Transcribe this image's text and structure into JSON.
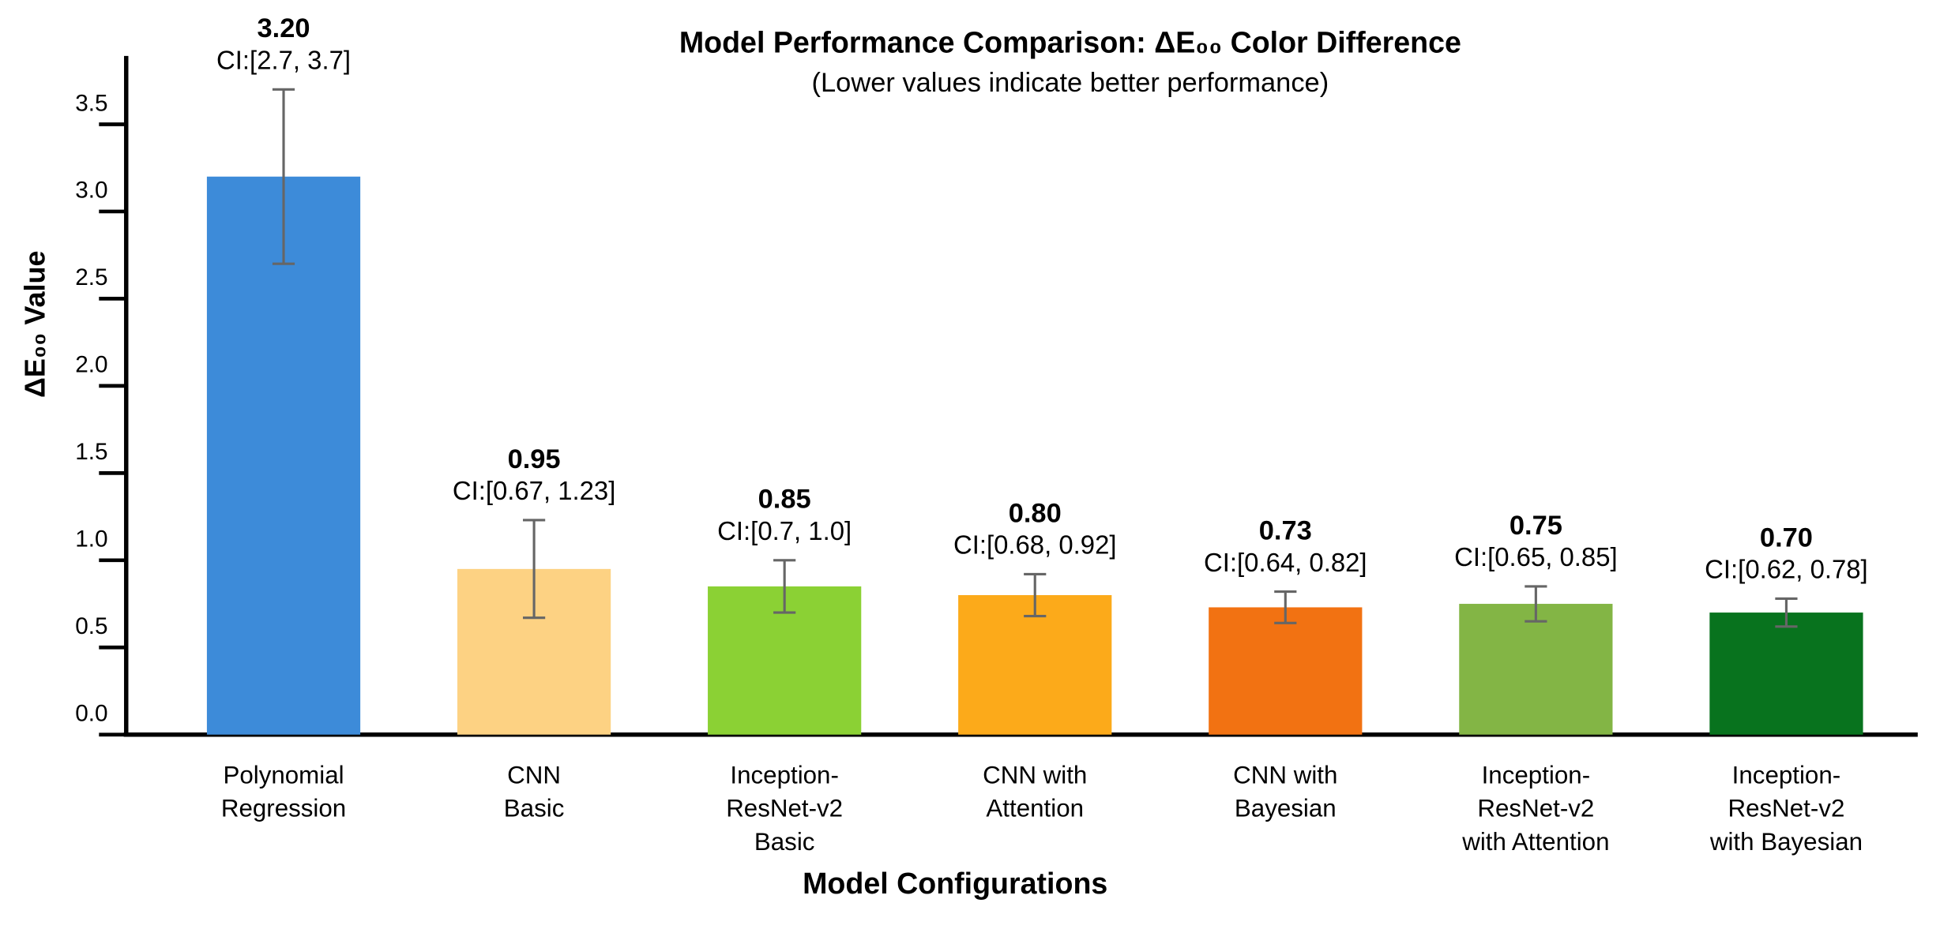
{
  "chart_data": {
    "type": "bar",
    "title": "Model Performance Comparison: ΔE₀₀ Color Difference",
    "subtitle": "(Lower values indicate better performance)",
    "x_label": "Model Configurations",
    "y_label": "ΔE₀₀ Value",
    "categories": [
      [
        "Polynomial",
        "Regression"
      ],
      [
        "CNN",
        "Basic"
      ],
      [
        "Inception-",
        "ResNet-v2",
        "Basic"
      ],
      [
        "CNN with",
        "Attention"
      ],
      [
        "CNN with",
        "Bayesian"
      ],
      [
        "Inception-",
        "ResNet-v2",
        "with Attention"
      ],
      [
        "Inception-",
        "ResNet-v2",
        "with Bayesian"
      ]
    ],
    "values": [
      3.2,
      0.95,
      0.85,
      0.8,
      0.73,
      0.75,
      0.7
    ],
    "value_labels": [
      "3.20",
      "0.95",
      "0.85",
      "0.80",
      "0.73",
      "0.75",
      "0.70"
    ],
    "ci_low": [
      2.7,
      0.67,
      0.7,
      0.68,
      0.64,
      0.65,
      0.62
    ],
    "ci_high": [
      3.7,
      1.23,
      1.0,
      0.92,
      0.82,
      0.85,
      0.78
    ],
    "ci_labels": [
      "CI:[2.7, 3.7]",
      "CI:[0.67, 1.23]",
      "CI:[0.7, 1.0]",
      "CI:[0.68, 0.92]",
      "CI:[0.64, 0.82]",
      "CI:[0.65, 0.85]",
      "CI:[0.62, 0.78]"
    ],
    "colors": [
      "#3d8bd9",
      "#fdd283",
      "#8bd134",
      "#fcaa1a",
      "#f27212",
      "#83b545",
      "#08731e"
    ],
    "error_color": "#666666",
    "ylim": [
      0,
      3.8
    ],
    "yticks": [
      {
        "value": 0,
        "label": "0.0"
      },
      0.5,
      {
        "value": 1,
        "label": "1.0"
      },
      1.5,
      {
        "value": 2,
        "label": "2.0"
      },
      2.5,
      {
        "value": 3,
        "label": "3.0"
      },
      3.5
    ],
    "grid": false
  }
}
